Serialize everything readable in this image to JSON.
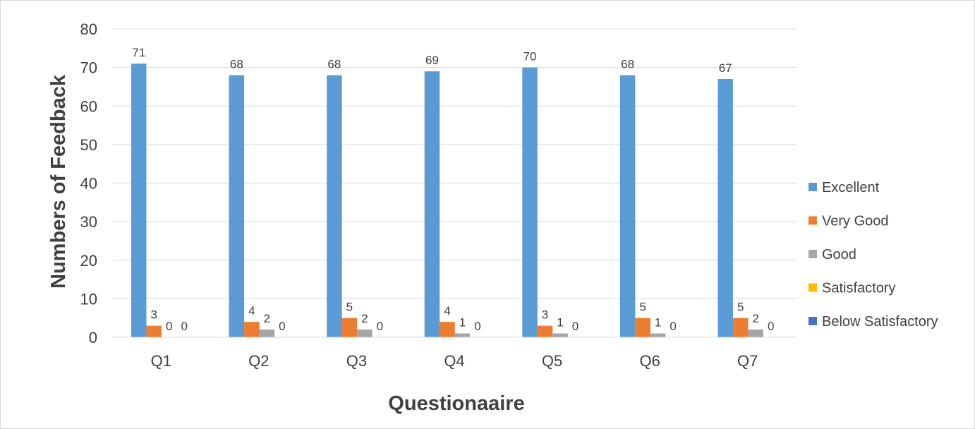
{
  "chart_data": {
    "type": "bar",
    "title": "",
    "xlabel": "Questionaaire",
    "ylabel": "Numbers of Feedback",
    "ylim": [
      0,
      80
    ],
    "yticks": [
      0,
      10,
      20,
      30,
      40,
      50,
      60,
      70,
      80
    ],
    "grid": true,
    "legend_position": "right",
    "categories": [
      "Q1",
      "Q2",
      "Q3",
      "Q4",
      "Q5",
      "Q6",
      "Q7"
    ],
    "series": [
      {
        "name": "Excellent",
        "color": "#5b9bd5",
        "values": [
          71,
          68,
          68,
          69,
          70,
          68,
          67
        ]
      },
      {
        "name": "Very Good",
        "color": "#ed7d31",
        "values": [
          3,
          4,
          5,
          4,
          3,
          5,
          5
        ]
      },
      {
        "name": "Good",
        "color": "#a5a5a5",
        "values": [
          0,
          2,
          2,
          1,
          1,
          1,
          2
        ]
      },
      {
        "name": "Satisfactory",
        "color": "#ffc000",
        "values": [
          0,
          0,
          0,
          0,
          0,
          0,
          0
        ]
      },
      {
        "name": "Below Satisfactory",
        "color": "#4472c4",
        "values": [
          0,
          0,
          0,
          0,
          0,
          0,
          0
        ]
      }
    ]
  }
}
